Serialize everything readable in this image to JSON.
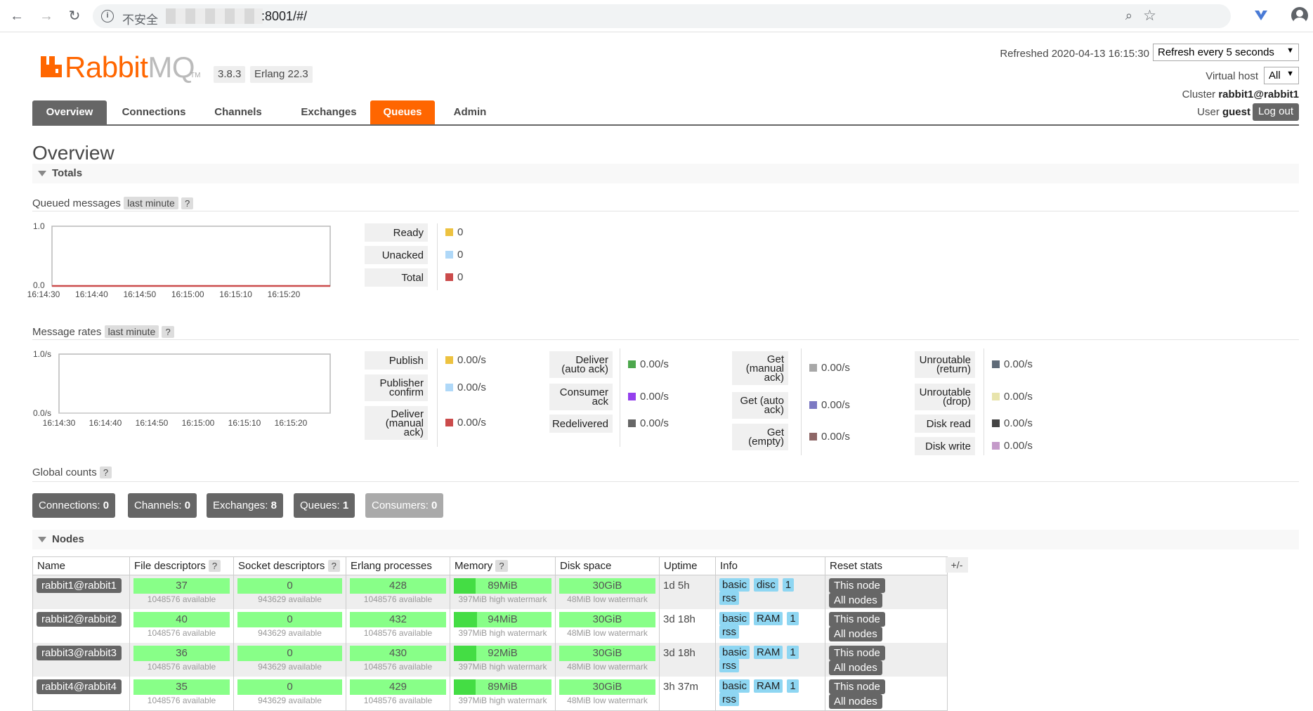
{
  "browser": {
    "insecure_label": "不安全",
    "url": ":8001/#/"
  },
  "header": {
    "logo_brand": "Rabbit",
    "logo_mq": "MQ",
    "logo_tm": "TM",
    "version": "3.8.3",
    "erlang": "Erlang 22.3",
    "refreshed": "Refreshed 2020-04-13 16:15:30",
    "refresh_select": "Refresh every 5 seconds",
    "vhost_label": "Virtual host",
    "vhost_select": "All",
    "cluster_label": "Cluster",
    "cluster_value": "rabbit1@rabbit1",
    "user_label": "User",
    "user_value": "guest",
    "logout": "Log out"
  },
  "tabs": [
    "Overview",
    "Connections",
    "Channels",
    "Exchanges",
    "Queues",
    "Admin"
  ],
  "page_title": "Overview",
  "totals_label": "Totals",
  "queued": {
    "label": "Queued messages",
    "period": "last minute",
    "help": "?",
    "chart": {
      "y_top": "1.0",
      "y_bottom": "0.0",
      "ticks": [
        "16:14:30",
        "16:14:40",
        "16:14:50",
        "16:15:00",
        "16:15:10",
        "16:15:20"
      ]
    },
    "legend": [
      {
        "label": "Ready",
        "value": "0",
        "color": "#edc240"
      },
      {
        "label": "Unacked",
        "value": "0",
        "color": "#afd8f8"
      },
      {
        "label": "Total",
        "value": "0",
        "color": "#cb4b4b"
      }
    ]
  },
  "rates": {
    "label": "Message rates",
    "period": "last minute",
    "help": "?",
    "chart": {
      "y_top": "1.0/s",
      "y_bottom": "0.0/s",
      "ticks": [
        "16:14:30",
        "16:14:40",
        "16:14:50",
        "16:15:00",
        "16:15:10",
        "16:15:20"
      ]
    },
    "col1": [
      {
        "label": "Publish",
        "value": "0.00/s",
        "color": "#edc240"
      },
      {
        "label": "Publisher confirm",
        "value": "0.00/s",
        "color": "#afd8f8"
      },
      {
        "label": "Deliver (manual ack)",
        "value": "0.00/s",
        "color": "#cb4b4b"
      }
    ],
    "col2": [
      {
        "label": "Deliver (auto ack)",
        "value": "0.00/s",
        "color": "#4da74d"
      },
      {
        "label": "Consumer ack",
        "value": "0.00/s",
        "color": "#9440ed"
      },
      {
        "label": "Redelivered",
        "value": "0.00/s",
        "color": "#666666"
      }
    ],
    "col3": [
      {
        "label": "Get (manual ack)",
        "value": "0.00/s",
        "color": "#a8a8a8"
      },
      {
        "label": "Get (auto ack)",
        "value": "0.00/s",
        "color": "#7c79c3"
      },
      {
        "label": "Get (empty)",
        "value": "0.00/s",
        "color": "#8e6767"
      }
    ],
    "col4": [
      {
        "label": "Unroutable (return)",
        "value": "0.00/s",
        "color": "#5f6b78"
      },
      {
        "label": "Unroutable (drop)",
        "value": "0.00/s",
        "color": "#e8e4ac"
      },
      {
        "label": "Disk read",
        "value": "0.00/s",
        "color": "#444444"
      },
      {
        "label": "Disk write",
        "value": "0.00/s",
        "color": "#c49ac9"
      }
    ]
  },
  "global": {
    "label": "Global counts",
    "help": "?",
    "counts": [
      {
        "label": "Connections:",
        "value": "0"
      },
      {
        "label": "Channels:",
        "value": "0"
      },
      {
        "label": "Exchanges:",
        "value": "8"
      },
      {
        "label": "Queues:",
        "value": "1"
      },
      {
        "label": "Consumers:",
        "value": "0"
      }
    ]
  },
  "nodes_label": "Nodes",
  "nodes_table": {
    "headers": [
      "Name",
      "File descriptors",
      "Socket descriptors",
      "Erlang processes",
      "Memory",
      "Disk space",
      "Uptime",
      "Info",
      "Reset stats"
    ],
    "help": "?",
    "plusminus": "+/-",
    "rows": [
      {
        "name": "rabbit1@rabbit1",
        "fd": "37",
        "fd_sub": "1048576 available",
        "sock": "0",
        "sock_sub": "943629 available",
        "erl": "428",
        "erl_sub": "1048576 available",
        "mem": "89MiB",
        "mem_sub": "397MiB high watermark",
        "mem_fraction": 0.22,
        "disk": "30GiB",
        "disk_sub": "48MiB low watermark",
        "uptime": "1d 5h",
        "info": [
          "basic",
          "disc",
          "1",
          "rss"
        ],
        "reset_this": "This node",
        "reset_all": "All nodes"
      },
      {
        "name": "rabbit2@rabbit2",
        "fd": "40",
        "fd_sub": "1048576 available",
        "sock": "0",
        "sock_sub": "943629 available",
        "erl": "432",
        "erl_sub": "1048576 available",
        "mem": "94MiB",
        "mem_sub": "397MiB high watermark",
        "mem_fraction": 0.24,
        "disk": "30GiB",
        "disk_sub": "48MiB low watermark",
        "uptime": "3d 18h",
        "info": [
          "basic",
          "RAM",
          "1",
          "rss"
        ],
        "reset_this": "This node",
        "reset_all": "All nodes"
      },
      {
        "name": "rabbit3@rabbit3",
        "fd": "36",
        "fd_sub": "1048576 available",
        "sock": "0",
        "sock_sub": "943629 available",
        "erl": "430",
        "erl_sub": "1048576 available",
        "mem": "92MiB",
        "mem_sub": "397MiB high watermark",
        "mem_fraction": 0.23,
        "disk": "30GiB",
        "disk_sub": "48MiB low watermark",
        "uptime": "3d 18h",
        "info": [
          "basic",
          "RAM",
          "1",
          "rss"
        ],
        "reset_this": "This node",
        "reset_all": "All nodes"
      },
      {
        "name": "rabbit4@rabbit4",
        "fd": "35",
        "fd_sub": "1048576 available",
        "sock": "0",
        "sock_sub": "943629 available",
        "erl": "429",
        "erl_sub": "1048576 available",
        "mem": "89MiB",
        "mem_sub": "397MiB high watermark",
        "mem_fraction": 0.22,
        "disk": "30GiB",
        "disk_sub": "48MiB low watermark",
        "uptime": "3h 37m",
        "info": [
          "basic",
          "RAM",
          "1",
          "rss"
        ],
        "reset_this": "This node",
        "reset_all": "All nodes"
      }
    ]
  }
}
